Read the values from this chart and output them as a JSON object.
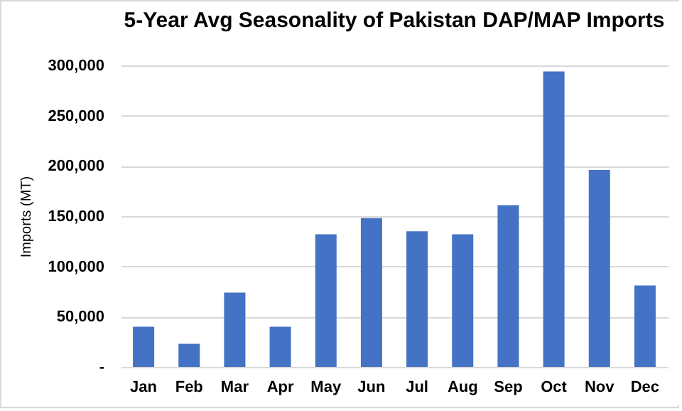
{
  "chart_data": {
    "type": "bar",
    "title": "5-Year Avg Seasonality of Pakistan DAP/MAP Imports",
    "ylabel": "Imports (MT)",
    "categories": [
      "Jan",
      "Feb",
      "Mar",
      "Apr",
      "May",
      "Jun",
      "Jul",
      "Aug",
      "Sep",
      "Oct",
      "Nov",
      "Dec"
    ],
    "values": [
      40000,
      23000,
      74000,
      40000,
      132000,
      148000,
      135000,
      132000,
      161000,
      294000,
      196000,
      81000
    ],
    "color": "#4472c4",
    "ylim": [
      0,
      300000
    ],
    "yticks": [
      {
        "value": 0,
        "label": "-"
      },
      {
        "value": 50000,
        "label": "50,000"
      },
      {
        "value": 100000,
        "label": "100,000"
      },
      {
        "value": 150000,
        "label": "150,000"
      },
      {
        "value": 200000,
        "label": "200,000"
      },
      {
        "value": 250000,
        "label": "250,000"
      },
      {
        "value": 300000,
        "label": "300,000"
      }
    ],
    "grid": "y"
  }
}
